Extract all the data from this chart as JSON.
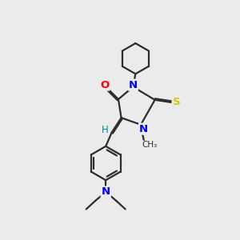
{
  "bg_color": "#ebebeb",
  "bond_color": "#2d2d2d",
  "N_color": "#0000ff",
  "O_color": "#ff0000",
  "S_color": "#cccc00",
  "H_color": "#008b8b",
  "line_width": 1.6,
  "figsize": [
    3.0,
    3.0
  ],
  "dpi": 100,
  "xlim": [
    0,
    10
  ],
  "ylim": [
    0,
    10
  ]
}
